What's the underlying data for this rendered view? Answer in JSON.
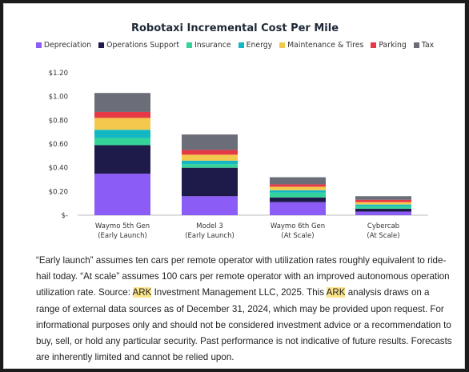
{
  "colors": {
    "depreciation": "#8b5cf6",
    "operations_support": "#1e1b4b",
    "insurance": "#34d399",
    "energy": "#14b8c4",
    "maintenance": "#f2c94c",
    "parking": "#e63946",
    "tax": "#6b6e78"
  },
  "chart_data": {
    "type": "bar",
    "stacked": true,
    "title": "Robotaxi Incremental Cost Per Mile",
    "categories": [
      [
        "Waymo 5th Gen",
        "(Early Launch)"
      ],
      [
        "Model 3",
        "(Early Launch)"
      ],
      [
        "Waymo 6th Gen",
        "(At Scale)"
      ],
      [
        "Cybercab",
        "(At Scale)"
      ]
    ],
    "series": [
      {
        "name": "Depreciation",
        "color_key": "depreciation",
        "values": [
          0.35,
          0.16,
          0.11,
          0.03
        ]
      },
      {
        "name": "Operations Support",
        "color_key": "operations_support",
        "values": [
          0.24,
          0.24,
          0.04,
          0.025
        ]
      },
      {
        "name": "Insurance",
        "color_key": "insurance",
        "values": [
          0.06,
          0.03,
          0.04,
          0.02
        ]
      },
      {
        "name": "Energy",
        "color_key": "energy",
        "values": [
          0.07,
          0.03,
          0.02,
          0.015
        ]
      },
      {
        "name": "Maintenance & Tires",
        "color_key": "maintenance",
        "values": [
          0.1,
          0.05,
          0.03,
          0.02
        ]
      },
      {
        "name": "Parking",
        "color_key": "parking",
        "values": [
          0.05,
          0.04,
          0.02,
          0.02
        ]
      },
      {
        "name": "Tax",
        "color_key": "tax",
        "values": [
          0.16,
          0.13,
          0.06,
          0.03
        ]
      }
    ],
    "y_ticks": [
      0,
      0.2,
      0.4,
      0.6,
      0.8,
      1.0,
      1.2
    ],
    "y_tick_labels": [
      "$-",
      "$0.20",
      "$0.40",
      "$0.60",
      "$0.80",
      "$1.00",
      "$1.20"
    ],
    "ylim": [
      0,
      1.2
    ],
    "grid": false,
    "legend_position": "top"
  },
  "note": {
    "segments": [
      {
        "text": "“Early launch” assumes ten cars per remote operator with utilization rates roughly equivalent to ride-hail today. “At scale” assumes 100 cars per remote operator with an improved autonomous operation utilization rate. Source: ",
        "highlight": false
      },
      {
        "text": "ARK",
        "highlight": true
      },
      {
        "text": " Investment Management LLC, 2025. This ",
        "highlight": false
      },
      {
        "text": "ARK",
        "highlight": true
      },
      {
        "text": " analysis draws on a range of external data sources as of December 31, 2024, which may be provided upon request. For informational purposes only and should not be considered investment advice or a recommendation to buy, sell, or hold any particular security. Past performance is not indicative of future results. Forecasts are inherently limited and cannot be relied upon.",
        "highlight": false
      }
    ]
  }
}
